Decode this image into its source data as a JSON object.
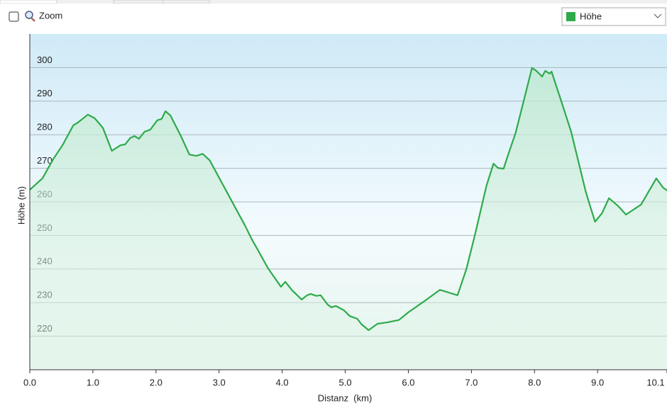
{
  "ui": {
    "zoom_label": "Zoom"
  },
  "chart_data": {
    "type": "line",
    "x_label": "Distanz  (km)",
    "y_label": "Höhe (m)",
    "x": [
      0,
      0.2,
      0.37,
      0.52,
      0.69,
      0.76,
      0.92,
      1.03,
      1.16,
      1.3,
      1.44,
      1.51,
      1.59,
      1.66,
      1.73,
      1.82,
      1.91,
      2.02,
      2.09,
      2.15,
      2.23,
      2.4,
      2.53,
      2.64,
      2.74,
      2.85,
      2.96,
      3.13,
      3.3,
      3.41,
      3.52,
      3.63,
      3.77,
      3.98,
      4.05,
      4.16,
      4.31,
      4.39,
      4.45,
      4.54,
      4.61,
      4.72,
      4.78,
      4.85,
      4.98,
      5.07,
      5.19,
      5.26,
      5.37,
      5.51,
      5.66,
      5.85,
      6.0,
      6.26,
      6.5,
      6.78,
      6.92,
      7.06,
      7.24,
      7.35,
      7.42,
      7.51,
      7.58,
      7.7,
      7.83,
      7.96,
      8.03,
      8.12,
      8.17,
      8.24,
      8.27,
      8.44,
      8.58,
      8.81,
      8.86,
      8.96,
      9.07,
      9.18,
      9.33,
      9.45,
      9.69,
      9.93,
      10.04,
      10.1
    ],
    "series": [
      {
        "name": "Höhe",
        "color": "#2eaa4a",
        "values": [
          263.6,
          267,
          272.7,
          276.9,
          282.8,
          283.6,
          286,
          284.9,
          282,
          275.2,
          276.9,
          277.1,
          279,
          279.6,
          278.8,
          280.9,
          281.5,
          284.3,
          284.7,
          287,
          285.7,
          279.4,
          274.1,
          273.7,
          274.3,
          272.4,
          268.6,
          262.7,
          256.8,
          253,
          248.8,
          245.2,
          240.4,
          234.7,
          236.2,
          233.6,
          230.9,
          232.1,
          232.6,
          232,
          232.2,
          229.4,
          228.6,
          229,
          227.7,
          226,
          225.2,
          223.5,
          221.8,
          223.7,
          224.1,
          224.8,
          227.1,
          230.5,
          233.8,
          232.2,
          240,
          250.5,
          264.9,
          271.4,
          270.1,
          269.9,
          273.9,
          280.5,
          290.2,
          299.9,
          299,
          297.3,
          299,
          298.2,
          298.8,
          289.1,
          280.9,
          263.2,
          260,
          254.1,
          256.6,
          261.1,
          258.7,
          256.2,
          259.2,
          267,
          264.2,
          263.4
        ]
      }
    ],
    "xlim": [
      0,
      10.1
    ],
    "xticks": [
      {
        "value": 0,
        "label": "0.0"
      },
      {
        "value": 1,
        "label": "1.0"
      },
      {
        "value": 2,
        "label": "2.0"
      },
      {
        "value": 3,
        "label": "3.0"
      },
      {
        "value": 4,
        "label": "4.0"
      },
      {
        "value": 5,
        "label": "5.0"
      },
      {
        "value": 6,
        "label": "6.0"
      },
      {
        "value": 7,
        "label": "7.0"
      },
      {
        "value": 8,
        "label": "8.0"
      },
      {
        "value": 9,
        "label": "9.0"
      },
      10.1
    ],
    "ylim": [
      210,
      310
    ],
    "yticks": [
      220,
      230,
      240,
      250,
      260,
      270,
      280,
      290,
      300
    ],
    "grid": true
  }
}
